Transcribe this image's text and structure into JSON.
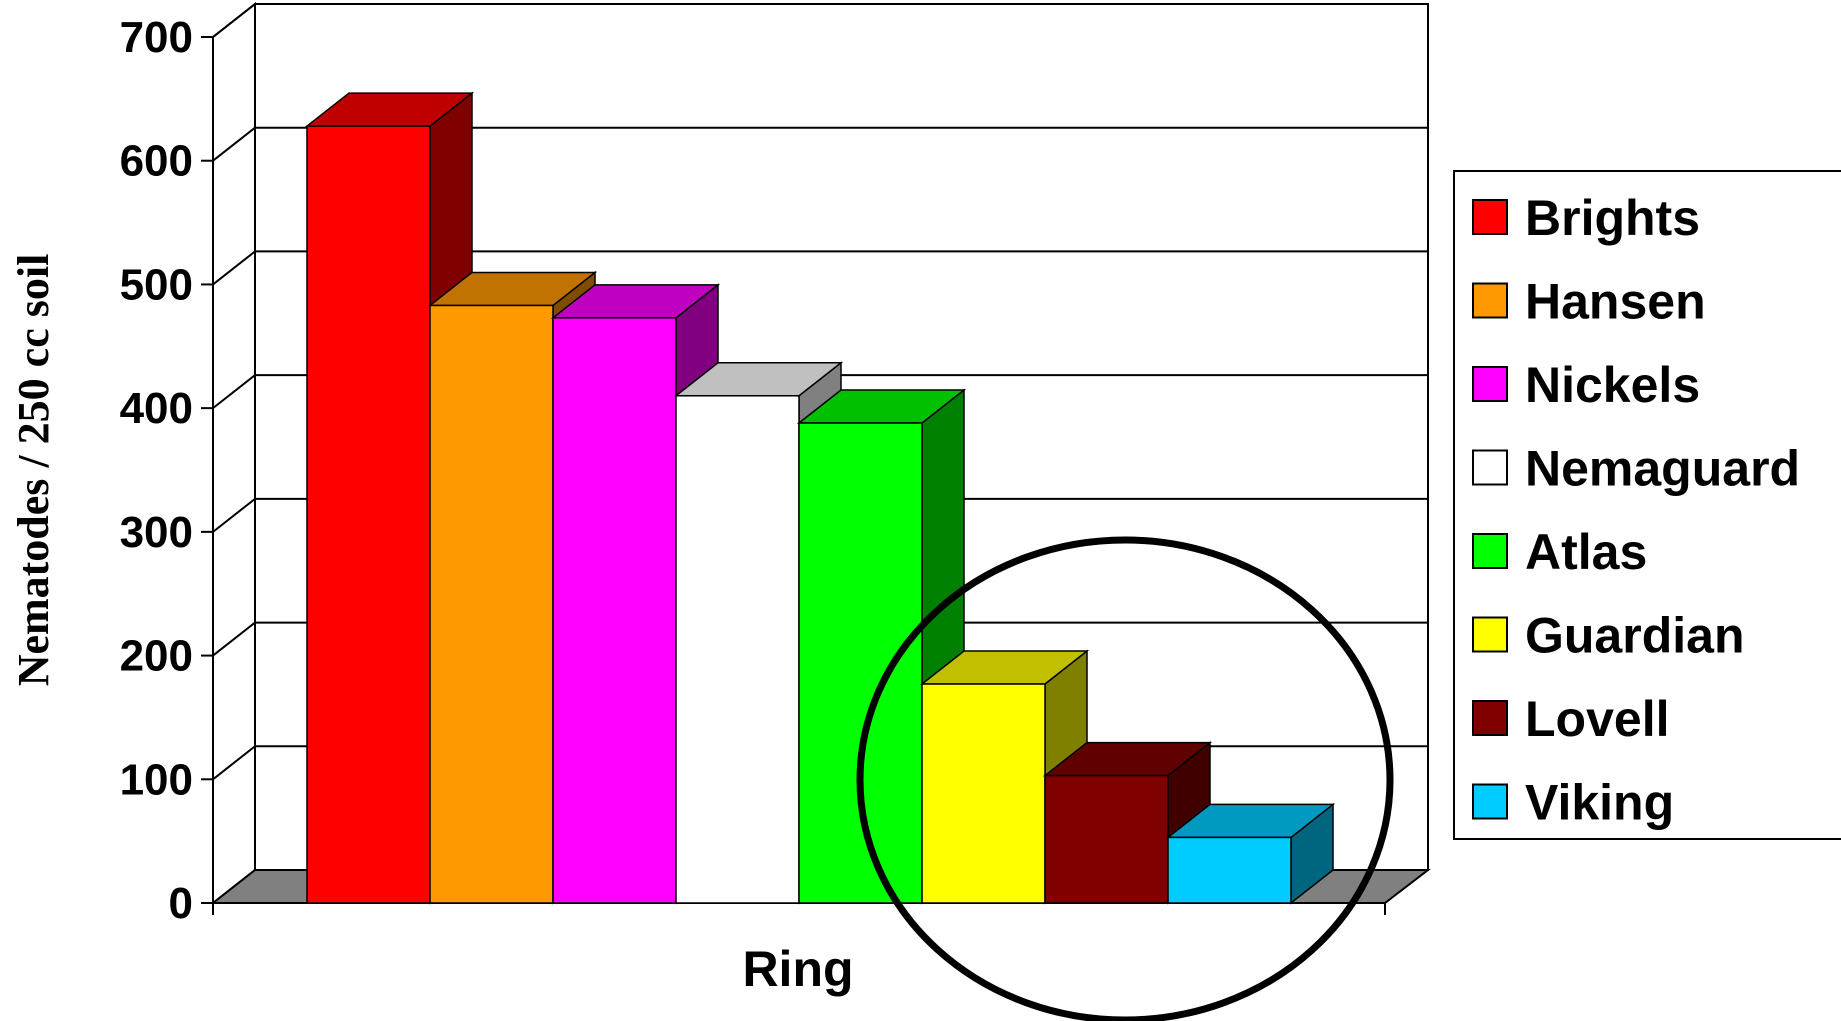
{
  "chart_data": {
    "type": "bar",
    "categories": [
      "Ring"
    ],
    "xlabel": "Ring",
    "ylabel": "Nematodes / 250 cc soil",
    "ylim": [
      0,
      700
    ],
    "yticks": [
      "0",
      "100",
      "200",
      "300",
      "400",
      "500",
      "600",
      "700"
    ],
    "grid": true,
    "legend_position": "right",
    "series": [
      {
        "name": "Brights",
        "values": [
          628
        ],
        "color": "#ff0000",
        "side": "#800000",
        "top": "#c00000"
      },
      {
        "name": "Hansen",
        "values": [
          483
        ],
        "color": "#ff9900",
        "side": "#804d00",
        "top": "#c07300"
      },
      {
        "name": "Nickels",
        "values": [
          473
        ],
        "color": "#ff00ff",
        "side": "#800080",
        "top": "#c000c0"
      },
      {
        "name": "Nemaguard",
        "values": [
          410
        ],
        "color": "#ffffff",
        "side": "#808080",
        "top": "#c0c0c0"
      },
      {
        "name": "Atlas",
        "values": [
          388
        ],
        "color": "#00ff00",
        "side": "#008000",
        "top": "#00c000"
      },
      {
        "name": "Guardian",
        "values": [
          177
        ],
        "color": "#ffff00",
        "side": "#808000",
        "top": "#c0c000"
      },
      {
        "name": "Lovell",
        "values": [
          103
        ],
        "color": "#800000",
        "side": "#400000",
        "top": "#600000"
      },
      {
        "name": "Viking",
        "values": [
          53
        ],
        "color": "#00ccff",
        "side": "#006680",
        "top": "#0099c0"
      }
    ]
  }
}
